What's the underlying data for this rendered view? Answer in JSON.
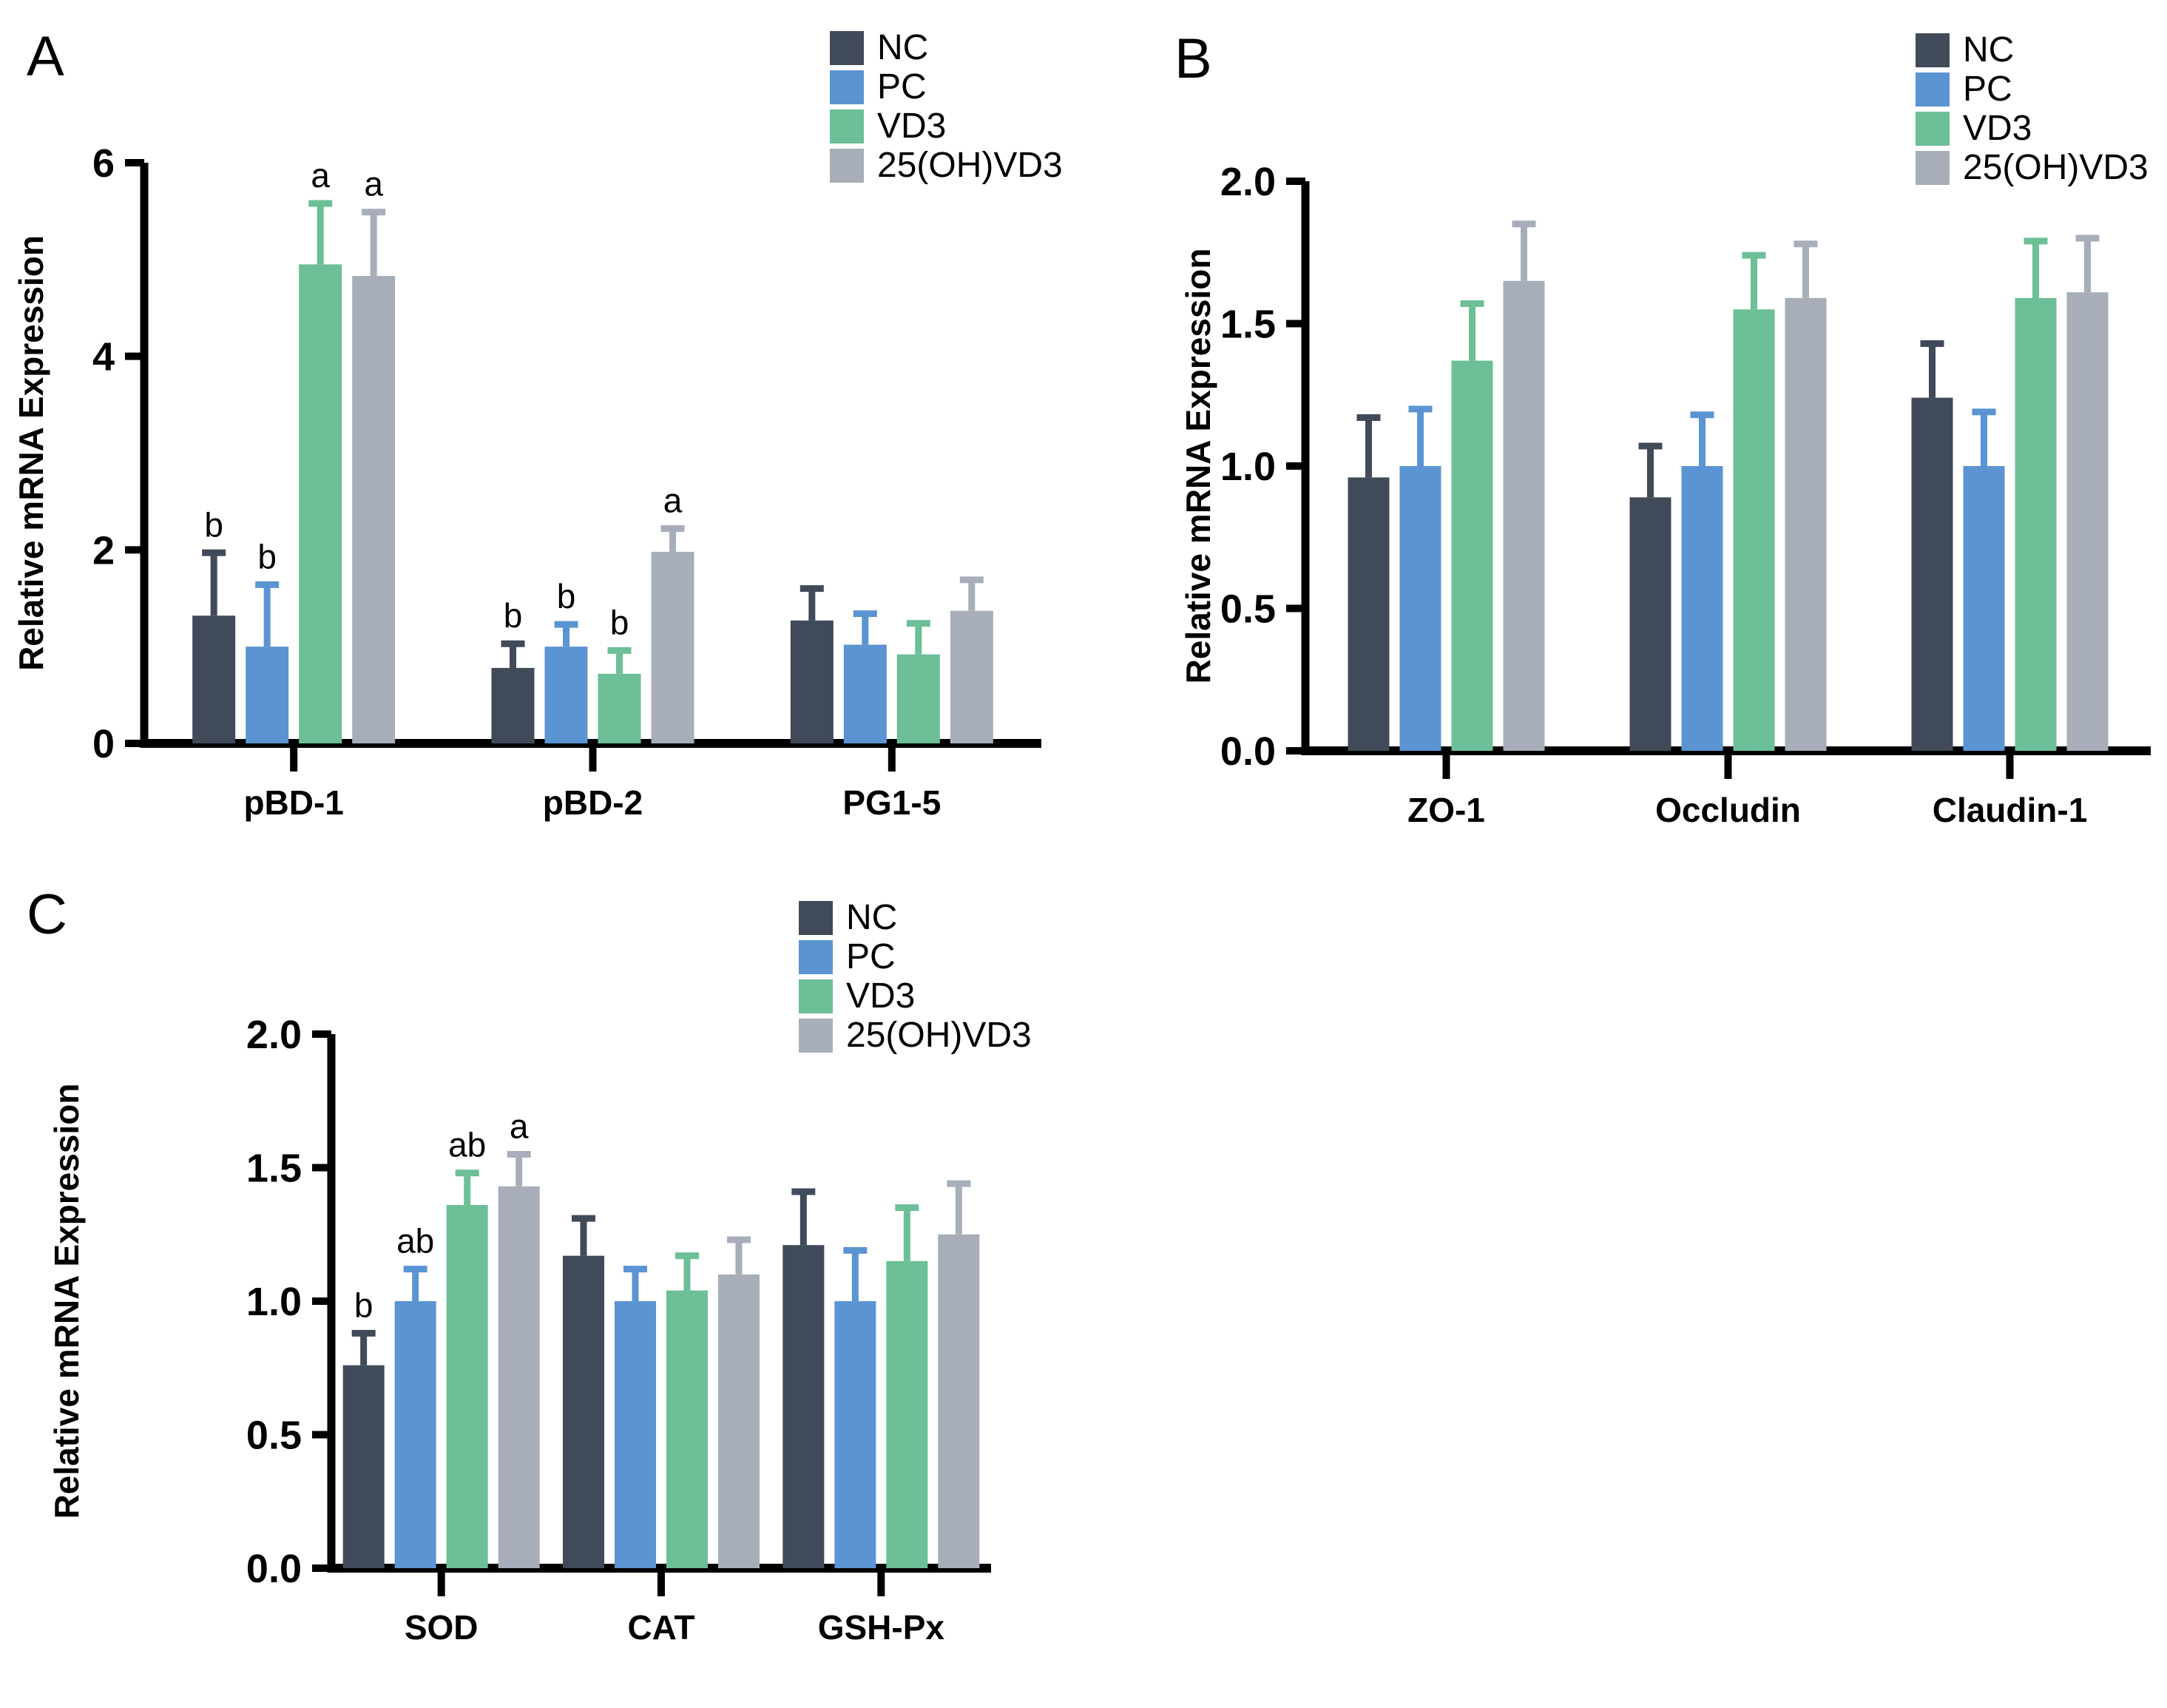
{
  "figure": {
    "background": "#ffffff",
    "description": "Three grouped bar charts of relative mRNA expression with error bars and significance letters"
  },
  "chart_data": [
    {
      "type": "bar",
      "panel_label": "A",
      "title": "",
      "xlabel": "",
      "ylabel": "Relative mRNA Expression",
      "ylim": [
        0,
        6
      ],
      "ytick_values": [
        0,
        2,
        4,
        6
      ],
      "ytick_labels": [
        "0",
        "2",
        "4",
        "6"
      ],
      "grid": false,
      "legend_position": "top-right-inside",
      "categories": [
        "pBD-1",
        "pBD-2",
        "PG1-5"
      ],
      "series": [
        {
          "name": "NC",
          "color": "#414a59",
          "values": [
            1.32,
            0.78,
            1.27
          ],
          "errors": [
            0.65,
            0.25,
            0.33
          ],
          "letters": [
            "b",
            "b",
            ""
          ]
        },
        {
          "name": "PC",
          "color": "#5b94d2",
          "values": [
            1.0,
            1.0,
            1.02
          ],
          "errors": [
            0.64,
            0.23,
            0.32
          ],
          "letters": [
            "b",
            "b",
            ""
          ]
        },
        {
          "name": "VD3",
          "color": "#6cbf97",
          "values": [
            4.95,
            0.72,
            0.92
          ],
          "errors": [
            0.63,
            0.24,
            0.32
          ],
          "letters": [
            "a",
            "b",
            ""
          ]
        },
        {
          "name": "25(OH)VD3",
          "color": "#a7aeba",
          "values": [
            4.83,
            1.98,
            1.37
          ],
          "errors": [
            0.66,
            0.24,
            0.32
          ],
          "letters": [
            "a",
            "a",
            ""
          ]
        }
      ]
    },
    {
      "type": "bar",
      "panel_label": "B",
      "title": "",
      "xlabel": "",
      "ylabel": "Relative mRNA Expression",
      "ylim": [
        0,
        2.0
      ],
      "ytick_values": [
        0,
        0.5,
        1.0,
        1.5,
        2.0
      ],
      "ytick_labels": [
        "0.0",
        "0.5",
        "1.0",
        "1.5",
        "2.0"
      ],
      "grid": false,
      "legend_position": "top-right-inside",
      "categories": [
        "ZO-1",
        "Occludin",
        "Claudin-1"
      ],
      "series": [
        {
          "name": "NC",
          "color": "#414a59",
          "values": [
            0.96,
            0.89,
            1.24
          ],
          "errors": [
            0.21,
            0.18,
            0.19
          ],
          "letters": [
            "",
            "",
            ""
          ]
        },
        {
          "name": "PC",
          "color": "#5b94d2",
          "values": [
            1.0,
            1.0,
            1.0
          ],
          "errors": [
            0.2,
            0.18,
            0.19
          ],
          "letters": [
            "",
            "",
            ""
          ]
        },
        {
          "name": "VD3",
          "color": "#6cbf97",
          "values": [
            1.37,
            1.55,
            1.59
          ],
          "errors": [
            0.2,
            0.19,
            0.2
          ],
          "letters": [
            "",
            "",
            ""
          ]
        },
        {
          "name": "25(OH)VD3",
          "color": "#a7aeba",
          "values": [
            1.65,
            1.59,
            1.61
          ],
          "errors": [
            0.2,
            0.19,
            0.19
          ],
          "letters": [
            "",
            "",
            ""
          ]
        }
      ]
    },
    {
      "type": "bar",
      "panel_label": "C",
      "title": "",
      "xlabel": "",
      "ylabel": "Relative mRNA Expression",
      "ylim": [
        0,
        2.0
      ],
      "ytick_values": [
        0,
        0.5,
        1.0,
        1.5,
        2.0
      ],
      "ytick_labels": [
        "0.0",
        "0.5",
        "1.0",
        "1.5",
        "2.0"
      ],
      "grid": false,
      "legend_position": "top-right-inside",
      "categories": [
        "SOD",
        "CAT",
        "GSH-Px"
      ],
      "series": [
        {
          "name": "NC",
          "color": "#414a59",
          "values": [
            0.76,
            1.17,
            1.21
          ],
          "errors": [
            0.12,
            0.14,
            0.2
          ],
          "letters": [
            "b",
            "",
            ""
          ]
        },
        {
          "name": "PC",
          "color": "#5b94d2",
          "values": [
            1.0,
            1.0,
            1.0
          ],
          "errors": [
            0.12,
            0.12,
            0.19
          ],
          "letters": [
            "ab",
            "",
            ""
          ]
        },
        {
          "name": "VD3",
          "color": "#6cbf97",
          "values": [
            1.36,
            1.04,
            1.15
          ],
          "errors": [
            0.12,
            0.13,
            0.2
          ],
          "letters": [
            "ab",
            "",
            ""
          ]
        },
        {
          "name": "25(OH)VD3",
          "color": "#a7aeba",
          "values": [
            1.43,
            1.1,
            1.25
          ],
          "errors": [
            0.12,
            0.13,
            0.19
          ],
          "letters": [
            "a",
            "",
            ""
          ]
        }
      ]
    }
  ]
}
